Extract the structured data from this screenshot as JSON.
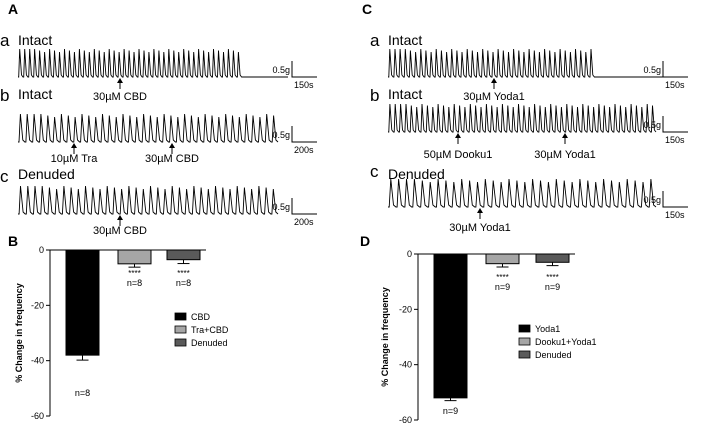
{
  "chart_data": [
    {
      "panel": "A",
      "type": "line",
      "title": "A",
      "traces": [
        {
          "letter": "a",
          "label": "Intact",
          "scale_y": "0.5g",
          "scale_x": "150s",
          "drugs": [
            "30µM CBD"
          ],
          "beats": 45,
          "stop_fraction": 0.86
        },
        {
          "letter": "b",
          "label": "Intact",
          "scale_y": "0.5g",
          "scale_x": "200s",
          "drugs": [
            "10µM Tra",
            "30µM CBD"
          ],
          "beats": 38,
          "stop_fraction": 1.0
        },
        {
          "letter": "c",
          "label": "Denuded",
          "scale_y": "0.5g",
          "scale_x": "200s",
          "drugs": [
            "30µM CBD"
          ],
          "beats": 36,
          "stop_fraction": 1.0
        }
      ]
    },
    {
      "panel": "B",
      "type": "bar",
      "title": "B",
      "ylabel": "% Change in frequency",
      "ylim": [
        -60,
        0
      ],
      "yticks": [
        "0",
        "-20",
        "-40",
        "-60"
      ],
      "categories": [
        "CBD",
        "Tra+CBD",
        "Denuded"
      ],
      "values": [
        -38,
        -5,
        -3.5
      ],
      "errors": [
        1.8,
        1.2,
        1.4
      ],
      "colors": [
        "#000000",
        "#a6a6a6",
        "#5a5a5a"
      ],
      "significance": [
        "",
        "****",
        "****"
      ],
      "n_labels": [
        "n=8",
        "n=8",
        "n=8"
      ],
      "legend": [
        "CBD",
        "Tra+CBD",
        "Denuded"
      ]
    },
    {
      "panel": "C",
      "type": "line",
      "title": "C",
      "traces": [
        {
          "letter": "a",
          "label": "Intact",
          "scale_y": "0.5g",
          "scale_x": "150s",
          "drugs": [
            "30µM Yoda1"
          ],
          "beats": 40,
          "stop_fraction": 0.77
        },
        {
          "letter": "b",
          "label": "Intact",
          "scale_y": "0.5g",
          "scale_x": "150s",
          "drugs": [
            "50µM Dooku1",
            "30µM Yoda1"
          ],
          "beats": 50,
          "stop_fraction": 1.0
        },
        {
          "letter": "c",
          "label": "Denuded",
          "scale_y": "0.5g",
          "scale_x": "150s",
          "drugs": [
            "30µM Yoda1"
          ],
          "beats": 34,
          "stop_fraction": 1.0
        }
      ]
    },
    {
      "panel": "D",
      "type": "bar",
      "title": "D",
      "ylabel": "% Change in frequency",
      "ylim": [
        -60,
        0
      ],
      "yticks": [
        "0",
        "-20",
        "-40",
        "-60"
      ],
      "categories": [
        "Yoda1",
        "Dooku1+Yoda1",
        "Denuded"
      ],
      "values": [
        -52,
        -3.5,
        -3
      ],
      "errors": [
        1.0,
        1.2,
        1.2
      ],
      "colors": [
        "#000000",
        "#a6a6a6",
        "#5a5a5a"
      ],
      "significance": [
        "",
        "****",
        "****"
      ],
      "n_labels": [
        "n=9",
        "n=9",
        "n=9"
      ],
      "legend": [
        "Yoda1",
        "Dooku1+Yoda1",
        "Denuded"
      ]
    }
  ]
}
